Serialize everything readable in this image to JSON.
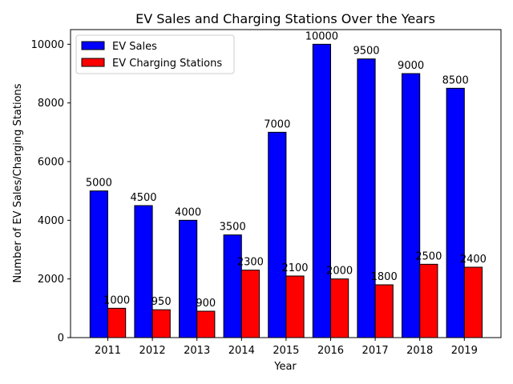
{
  "chart_data": {
    "type": "bar",
    "title": "EV Sales and Charging Stations Over the Years",
    "xlabel": "Year",
    "ylabel": "Number of EV Sales/Charging Stations",
    "categories": [
      "2011",
      "2012",
      "2013",
      "2014",
      "2015",
      "2016",
      "2017",
      "2018",
      "2019"
    ],
    "series": [
      {
        "name": "EV Sales",
        "color": "#0000ff",
        "values": [
          5000,
          4500,
          4000,
          3500,
          7000,
          10000,
          9500,
          9000,
          8500
        ]
      },
      {
        "name": "EV Charging Stations",
        "color": "#ff0000",
        "values": [
          1000,
          950,
          900,
          2300,
          2100,
          2000,
          1800,
          2500,
          2400
        ]
      }
    ],
    "ylim": [
      0,
      10500
    ],
    "yticks": [
      0,
      2000,
      4000,
      6000,
      8000,
      10000
    ],
    "grid": false,
    "legend_position": "top-left",
    "bar_edge_color": "#000000"
  }
}
